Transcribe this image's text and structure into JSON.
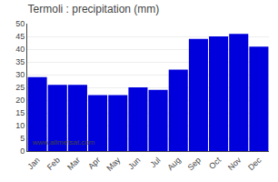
{
  "chart_data": {
    "type": "bar",
    "title": "Termoli : precipitation (mm)",
    "categories": [
      "Jan",
      "Feb",
      "Mar",
      "Apr",
      "May",
      "Jun",
      "Jul",
      "Aug",
      "Sep",
      "Oct",
      "Nov",
      "Dec"
    ],
    "values": [
      29,
      26,
      26,
      22,
      22,
      25,
      24,
      32,
      44,
      45,
      46,
      41
    ],
    "color": "#0000dd",
    "ylim": [
      0,
      50
    ],
    "yticks": [
      0,
      5,
      10,
      15,
      20,
      25,
      30,
      35,
      40,
      45,
      50
    ],
    "grid": true,
    "annotations": [
      "www.allmetsat.com"
    ]
  }
}
